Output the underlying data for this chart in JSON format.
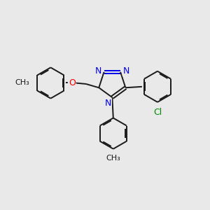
{
  "bg_color": "#e9e9e9",
  "bond_color": "#1a1a1a",
  "n_color": "#0000ee",
  "o_color": "#ee0000",
  "cl_color": "#008800",
  "lw": 1.4,
  "dbo": 0.055,
  "figsize": [
    3.0,
    3.0
  ],
  "dpi": 100,
  "xlim": [
    0,
    10
  ],
  "ylim": [
    0,
    10
  ]
}
